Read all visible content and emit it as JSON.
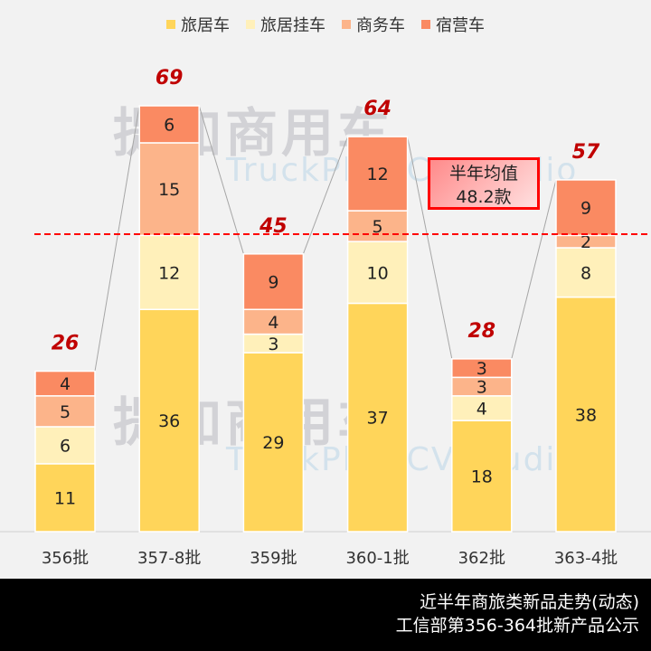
{
  "chart_data": {
    "type": "bar",
    "stacked": true,
    "categories": [
      "356批",
      "357-8批",
      "359批",
      "360-1批",
      "362批",
      "363-4批"
    ],
    "series": [
      {
        "name": "旅居车",
        "values": [
          11,
          36,
          29,
          37,
          18,
          38
        ],
        "color": "#FFD55A"
      },
      {
        "name": "旅居挂车",
        "values": [
          6,
          12,
          3,
          10,
          4,
          8
        ],
        "color": "#FFF0BA"
      },
      {
        "name": "商务车",
        "values": [
          5,
          15,
          4,
          5,
          3,
          2
        ],
        "color": "#FCB48A"
      },
      {
        "name": "宿营车",
        "values": [
          4,
          6,
          9,
          12,
          3,
          9
        ],
        "color": "#FA8A62"
      }
    ],
    "totals": [
      26,
      69,
      45,
      64,
      28,
      57
    ],
    "average": {
      "value": 48.2,
      "label_line1": "半年均值",
      "label_line2": "48.2款",
      "color": "#FF0000"
    },
    "ylim": [
      0,
      69
    ],
    "legend": "top",
    "grid": false
  },
  "watermark": {
    "cn": "提加商用车",
    "en": "TruckPlus CV studio"
  },
  "footer": {
    "line1": "近半年商旅类新品走势(动态)",
    "line2": "工信部第356-364批新产品公示"
  }
}
